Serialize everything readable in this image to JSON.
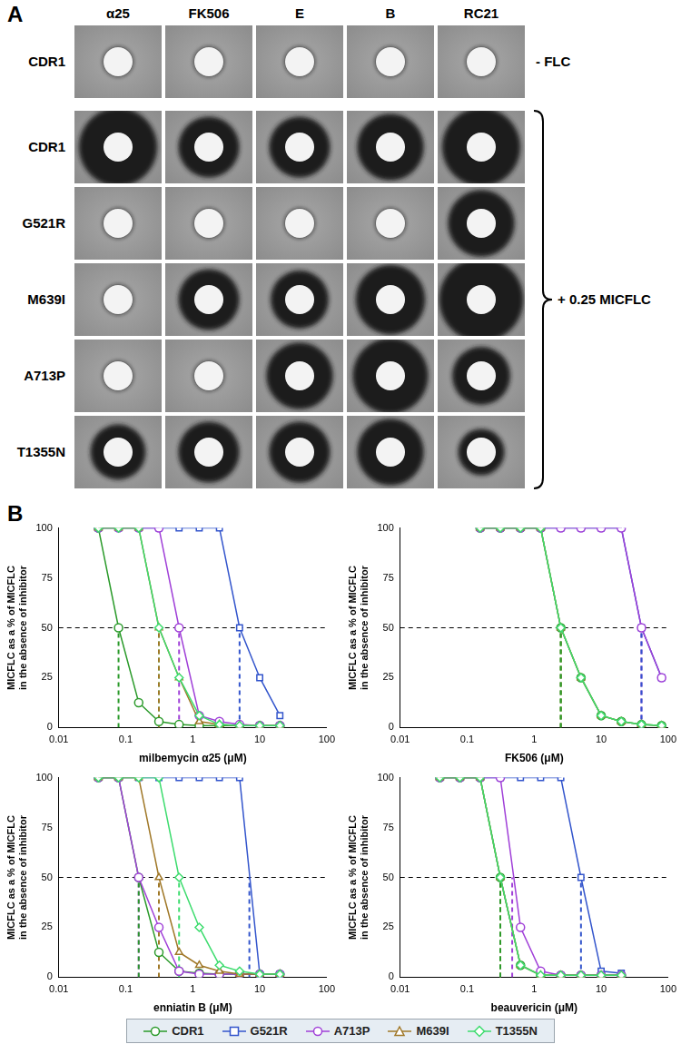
{
  "panel_a": {
    "label": "A",
    "columns": [
      "α25",
      "FK506",
      "E",
      "B",
      "RC21"
    ],
    "control": {
      "strain": "CDR1",
      "label": "- FLC",
      "halo_ratio": [
        1,
        1,
        1,
        1,
        1
      ]
    },
    "treated": {
      "label": "+ 0.25 MICFLC",
      "rows": [
        {
          "strain": "CDR1",
          "halo_ratio": [
            2.7,
            2.1,
            2.1,
            2.3,
            2.7
          ]
        },
        {
          "strain": "G521R",
          "halo_ratio": [
            1,
            1,
            1,
            1,
            2.3
          ]
        },
        {
          "strain": "M639I",
          "halo_ratio": [
            1,
            2.1,
            2.0,
            2.4,
            2.9
          ]
        },
        {
          "strain": "A713P",
          "halo_ratio": [
            1,
            1,
            2.3,
            2.6,
            2.0
          ]
        },
        {
          "strain": "T1355N",
          "halo_ratio": [
            1.9,
            2.1,
            2.1,
            2.3,
            1.6
          ]
        }
      ]
    }
  },
  "panel_b": {
    "label": "B"
  },
  "chart_data": [
    {
      "type": "line",
      "x_label": "milbemycin α25 (μM)",
      "y_label": [
        "MICFLC as a % of MICFLC",
        "in the absence of inhibitor"
      ],
      "log": "x",
      "grid": false,
      "legend": "bottom",
      "xlim": [
        0.01,
        100
      ],
      "xticks": [
        0.01,
        0.1,
        1,
        10,
        100
      ],
      "ylim": [
        0,
        100
      ],
      "yticks": [
        0,
        25,
        50,
        75,
        100
      ],
      "threshold": 50,
      "x": [
        0.039,
        0.078,
        0.156,
        0.3125,
        0.625,
        1.25,
        2.5,
        5,
        10,
        20
      ],
      "series": [
        {
          "name": "CDR1",
          "color": "#2a9a2a",
          "marker": "circle",
          "ic50": 0.078,
          "values": [
            100,
            50,
            12.5,
            3,
            1.5,
            1,
            1,
            1,
            1,
            1
          ]
        },
        {
          "name": "G521R",
          "color": "#3355cc",
          "marker": "square",
          "ic50": 5,
          "values": [
            100,
            100,
            100,
            100,
            100,
            100,
            100,
            50,
            25,
            6
          ]
        },
        {
          "name": "A713P",
          "color": "#a040d8",
          "marker": "circle",
          "ic50": 0.625,
          "values": [
            100,
            100,
            100,
            100,
            50,
            6,
            3,
            1.5,
            1,
            1
          ]
        },
        {
          "name": "M639I",
          "color": "#a07828",
          "marker": "triangle",
          "ic50": 0.3125,
          "values": [
            100,
            100,
            100,
            50,
            25,
            3,
            1.5,
            1,
            1,
            1
          ]
        },
        {
          "name": "T1355N",
          "color": "#3ddc6e",
          "marker": "diamond",
          "ic50": 0.3125,
          "values": [
            100,
            100,
            100,
            50,
            25,
            6,
            1.5,
            1,
            1,
            1
          ]
        }
      ]
    },
    {
      "type": "line",
      "x_label": "FK506 (μM)",
      "y_label": [
        "MICFLC as a % of MICFLC",
        "in the absence of inhibitor"
      ],
      "log": "x",
      "grid": false,
      "legend": "bottom",
      "xlim": [
        0.01,
        100
      ],
      "xticks": [
        0.01,
        0.1,
        1,
        10,
        100
      ],
      "ylim": [
        0,
        100
      ],
      "yticks": [
        0,
        25,
        50,
        75,
        100
      ],
      "threshold": 50,
      "x": [
        0.156,
        0.3125,
        0.625,
        1.25,
        2.5,
        5,
        10,
        20,
        40,
        80
      ],
      "series": [
        {
          "name": "CDR1",
          "color": "#2a9a2a",
          "marker": "circle",
          "ic50": 2.5,
          "values": [
            100,
            100,
            100,
            100,
            50,
            25,
            6,
            3,
            1.5,
            1
          ]
        },
        {
          "name": "G521R",
          "color": "#3355cc",
          "marker": "square",
          "ic50": 40,
          "values": [
            100,
            100,
            100,
            100,
            100,
            100,
            100,
            100,
            50,
            25
          ]
        },
        {
          "name": "A713P",
          "color": "#a040d8",
          "marker": "circle",
          "ic50": 40,
          "values": [
            100,
            100,
            100,
            100,
            100,
            100,
            100,
            100,
            50,
            25
          ]
        },
        {
          "name": "M639I",
          "color": "#a07828",
          "marker": "triangle",
          "ic50": 2.5,
          "values": [
            100,
            100,
            100,
            100,
            50,
            25,
            6,
            3,
            1.5,
            1
          ]
        },
        {
          "name": "T1355N",
          "color": "#3ddc6e",
          "marker": "diamond",
          "ic50": 2.5,
          "values": [
            100,
            100,
            100,
            100,
            50,
            25,
            6,
            3,
            1.5,
            1
          ]
        }
      ]
    },
    {
      "type": "line",
      "x_label": "enniatin B (μM)",
      "y_label": [
        "MICFLC as a % of MICFLC",
        "in the absence of inhibitor"
      ],
      "log": "x",
      "grid": false,
      "legend": "bottom",
      "xlim": [
        0.01,
        100
      ],
      "xticks": [
        0.01,
        0.1,
        1,
        10,
        100
      ],
      "ylim": [
        0,
        100
      ],
      "yticks": [
        0,
        25,
        50,
        75,
        100
      ],
      "threshold": 50,
      "x": [
        0.039,
        0.078,
        0.156,
        0.3125,
        0.625,
        1.25,
        2.5,
        5,
        10,
        20
      ],
      "series": [
        {
          "name": "CDR1",
          "color": "#2a9a2a",
          "marker": "circle",
          "ic50": 0.156,
          "values": [
            100,
            100,
            50,
            12.5,
            3,
            2,
            1.5,
            1.5,
            1.5,
            1.5
          ]
        },
        {
          "name": "G521R",
          "color": "#3355cc",
          "marker": "square",
          "ic50": 7,
          "values": [
            100,
            100,
            100,
            100,
            100,
            100,
            100,
            100,
            1.5,
            1.5
          ]
        },
        {
          "name": "A713P",
          "color": "#a040d8",
          "marker": "circle",
          "ic50": 0.156,
          "values": [
            100,
            100,
            50,
            25,
            3,
            1.5,
            1.5,
            1.5,
            1.5,
            1.5
          ]
        },
        {
          "name": "M639I",
          "color": "#a07828",
          "marker": "triangle",
          "ic50": 0.3125,
          "values": [
            100,
            100,
            100,
            50,
            12.5,
            6,
            3,
            1.5,
            1.5,
            1.5
          ]
        },
        {
          "name": "T1355N",
          "color": "#3ddc6e",
          "marker": "diamond",
          "ic50": 0.625,
          "values": [
            100,
            100,
            100,
            100,
            50,
            25,
            6,
            3,
            1.5,
            1.5
          ]
        }
      ]
    },
    {
      "type": "line",
      "x_label": "beauvericin (μM)",
      "y_label": [
        "MICFLC as a % of MICFLC",
        "in the absence of inhibitor"
      ],
      "log": "x",
      "grid": false,
      "legend": "bottom",
      "xlim": [
        0.01,
        100
      ],
      "xticks": [
        0.01,
        0.1,
        1,
        10,
        100
      ],
      "ylim": [
        0,
        100
      ],
      "yticks": [
        0,
        25,
        50,
        75,
        100
      ],
      "threshold": 50,
      "x": [
        0.039,
        0.078,
        0.156,
        0.3125,
        0.625,
        1.25,
        2.5,
        5,
        10,
        20
      ],
      "series": [
        {
          "name": "CDR1",
          "color": "#2a9a2a",
          "marker": "circle",
          "ic50": 0.3125,
          "values": [
            100,
            100,
            100,
            50,
            6,
            1,
            1,
            1,
            1,
            1
          ]
        },
        {
          "name": "G521R",
          "color": "#3355cc",
          "marker": "square",
          "ic50": 5,
          "values": [
            100,
            100,
            100,
            100,
            100,
            100,
            100,
            50,
            3,
            2
          ]
        },
        {
          "name": "A713P",
          "color": "#a040d8",
          "marker": "circle",
          "ic50": 0.47,
          "values": [
            100,
            100,
            100,
            100,
            25,
            3,
            1,
            1,
            1,
            1
          ]
        },
        {
          "name": "M639I",
          "color": "#a07828",
          "marker": "triangle",
          "ic50": 0.3125,
          "values": [
            100,
            100,
            100,
            50,
            6,
            1,
            1,
            1,
            1,
            1
          ]
        },
        {
          "name": "T1355N",
          "color": "#3ddc6e",
          "marker": "diamond",
          "ic50": 0.3125,
          "values": [
            100,
            100,
            100,
            50,
            6,
            1,
            1,
            1,
            1,
            1
          ]
        }
      ]
    }
  ]
}
